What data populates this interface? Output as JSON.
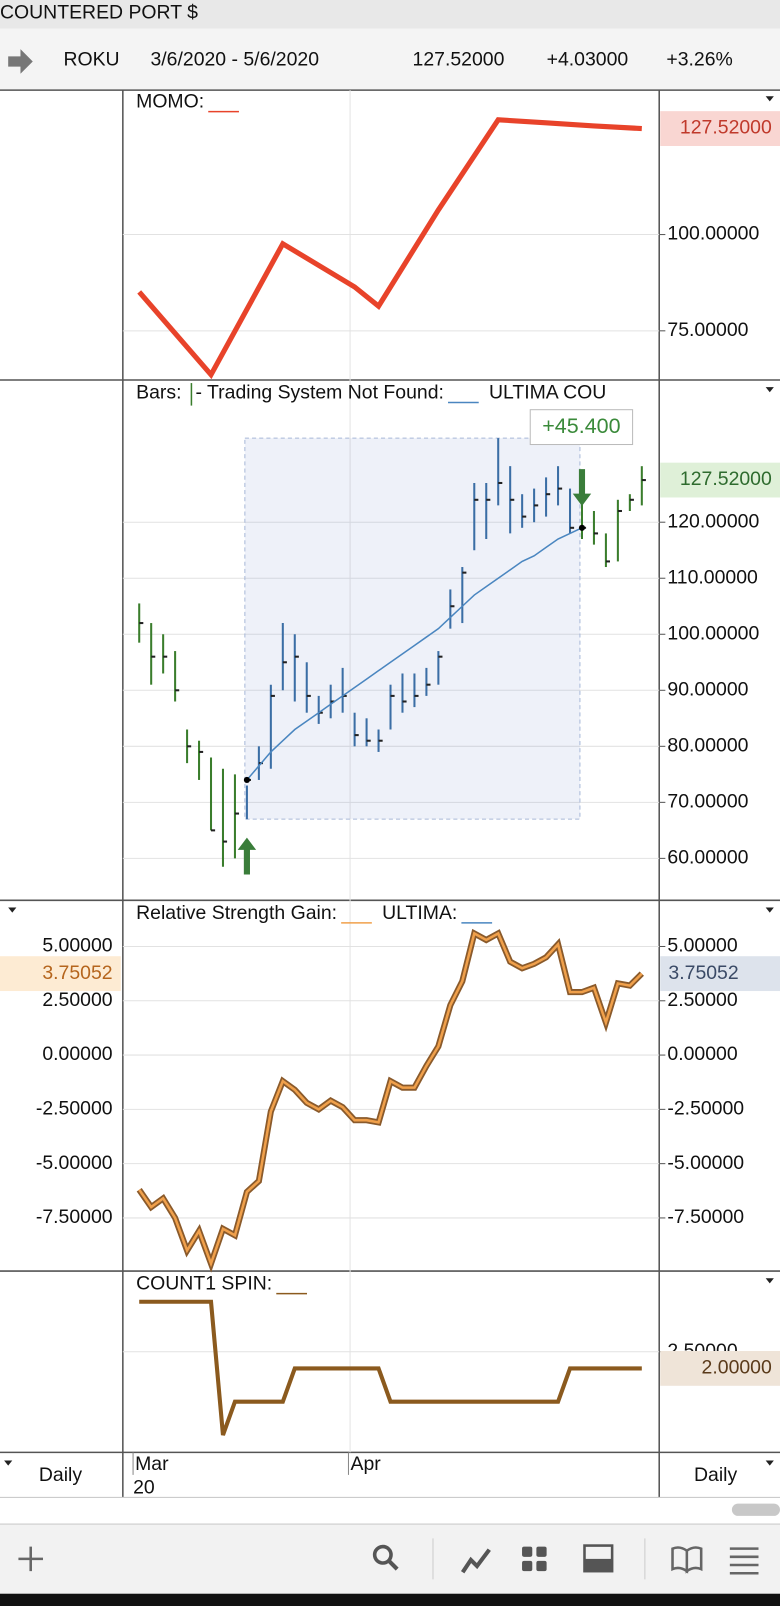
{
  "title_bar": "COUNTERED PORT $",
  "symbol_row": {
    "symbol": "ROKU",
    "range": "3/6/2020 - 5/6/2020",
    "last": "127.52000",
    "change": "+4.03000",
    "change_pct": "+3.26%"
  },
  "x_axis": {
    "left_label": "Daily",
    "right_label": "Daily",
    "months": [
      {
        "index": 0,
        "label": "Mar"
      },
      {
        "index": 18,
        "label": "Apr"
      }
    ],
    "year": "20"
  },
  "momo": {
    "type": "line",
    "label": "MOMO:",
    "color": "#e8432a",
    "x": [
      0,
      6,
      12,
      18,
      20,
      25,
      30,
      34,
      38,
      42
    ],
    "values": [
      85.1,
      63.6,
      97.6,
      86.4,
      81.4,
      106.4,
      129.8,
      129.0,
      128.2,
      127.52
    ],
    "last_label": "127.52000",
    "ylim": [
      62.5,
      137.5
    ],
    "yticks": [
      {
        "value": 75,
        "label": "75.00000"
      },
      {
        "value": 100,
        "label": "100.00000"
      }
    ]
  },
  "bars": {
    "type": "ohlc",
    "label": "Bars:",
    "label2": "- Trading System Not Found:",
    "label3": "ULTIMA COU",
    "in_trade_color": "#3b6ea5",
    "out_color": "#3a7d2c",
    "ultima_color": "#4a86c0",
    "high": [
      105.5,
      102,
      100,
      97,
      83,
      81,
      78,
      76,
      75,
      73,
      80,
      91,
      102,
      100,
      95,
      89,
      91,
      94,
      86,
      85,
      83,
      91,
      93,
      93,
      94,
      97,
      108,
      112,
      127,
      127,
      135,
      130,
      125,
      126,
      128,
      130,
      126,
      124,
      122,
      118,
      124,
      125,
      130
    ],
    "low": [
      98.5,
      91,
      93,
      88,
      77,
      74,
      65,
      58.5,
      60,
      67,
      74,
      76,
      90,
      88,
      86,
      84,
      85,
      86,
      80,
      80,
      79,
      83,
      86,
      87,
      89,
      91,
      101,
      102,
      115,
      117,
      123,
      118,
      119,
      120,
      121,
      123,
      118,
      117,
      116,
      112,
      113,
      122,
      123
    ],
    "close": [
      102,
      96,
      96,
      90,
      80,
      79,
      65,
      63,
      68,
      74,
      77,
      89,
      95,
      96,
      89,
      86,
      88,
      89,
      82,
      81,
      81,
      89,
      88,
      89,
      91,
      96,
      105,
      111,
      124,
      124,
      127,
      124,
      121,
      123,
      125,
      126,
      119,
      119,
      118,
      113,
      122,
      124,
      127.52
    ],
    "ultima": [
      null,
      null,
      null,
      null,
      null,
      null,
      null,
      null,
      null,
      74,
      76.5,
      79,
      81,
      83,
      84.5,
      86,
      87.5,
      89,
      90.5,
      92,
      93.5,
      95,
      96.5,
      98,
      99.5,
      101,
      103,
      105,
      107,
      108.5,
      110,
      111.5,
      113,
      114,
      115.5,
      117,
      118,
      119,
      null,
      null,
      null,
      null,
      null
    ],
    "entry_index": 9,
    "exit_index": 37,
    "profit_label": "+45.400",
    "last_label": "127.52000",
    "ylim": [
      52.7,
      145.2
    ],
    "yticks": [
      {
        "value": 60,
        "label": "60.00000"
      },
      {
        "value": 70,
        "label": "70.00000"
      },
      {
        "value": 80,
        "label": "80.00000"
      },
      {
        "value": 90,
        "label": "90.00000"
      },
      {
        "value": 100,
        "label": "100.00000"
      },
      {
        "value": 110,
        "label": "110.00000"
      },
      {
        "value": 120,
        "label": "120.00000"
      }
    ]
  },
  "rs": {
    "type": "line",
    "label": "Relative Strength Gain:",
    "label2": "ULTIMA:",
    "color": "#f0a04b",
    "outline_color": "#8a5a2b",
    "ultima_color": "#4a86c0",
    "values": [
      -6.2,
      -7,
      -6.6,
      -7.5,
      -9,
      -8.1,
      -9.6,
      -8,
      -8.3,
      -6.3,
      -5.8,
      -2.6,
      -1.2,
      -1.6,
      -2.2,
      -2.5,
      -2.1,
      -2.4,
      -3,
      -3,
      -3.1,
      -1.2,
      -1.5,
      -1.5,
      -0.5,
      0.4,
      2.3,
      3.4,
      5.6,
      5.3,
      5.6,
      4.3,
      4,
      4.2,
      4.5,
      5.1,
      2.9,
      2.9,
      3.1,
      1.5,
      3.3,
      3.2,
      3.75052
    ],
    "last_label": "3.75052",
    "ultima_last_label": "3.75052",
    "ylim": [
      -9.9,
      7.08
    ],
    "yticks": [
      {
        "value": -7.5,
        "label": "-7.50000"
      },
      {
        "value": -5,
        "label": "-5.00000"
      },
      {
        "value": -2.5,
        "label": "-2.50000"
      },
      {
        "value": 0,
        "label": "0.00000"
      },
      {
        "value": 2.5,
        "label": "2.50000"
      },
      {
        "value": 5,
        "label": "5.00000"
      }
    ]
  },
  "spin": {
    "type": "line",
    "label": "COUNT1 SPIN:",
    "color": "#8b5a1e",
    "values": [
      4,
      4,
      4,
      4,
      4,
      4,
      4,
      0,
      1,
      1,
      1,
      1,
      1,
      2,
      2,
      2,
      2,
      2,
      2,
      2,
      2,
      1,
      1,
      1,
      1,
      1,
      1,
      1,
      1,
      1,
      1,
      1,
      1,
      1,
      1,
      1,
      2,
      2,
      2,
      2,
      2,
      2,
      2
    ],
    "last_label": "2.00000",
    "ylim": [
      -0.52,
      4.89
    ],
    "yticks": [
      {
        "value": 2.5,
        "label": "2.50000"
      }
    ]
  }
}
